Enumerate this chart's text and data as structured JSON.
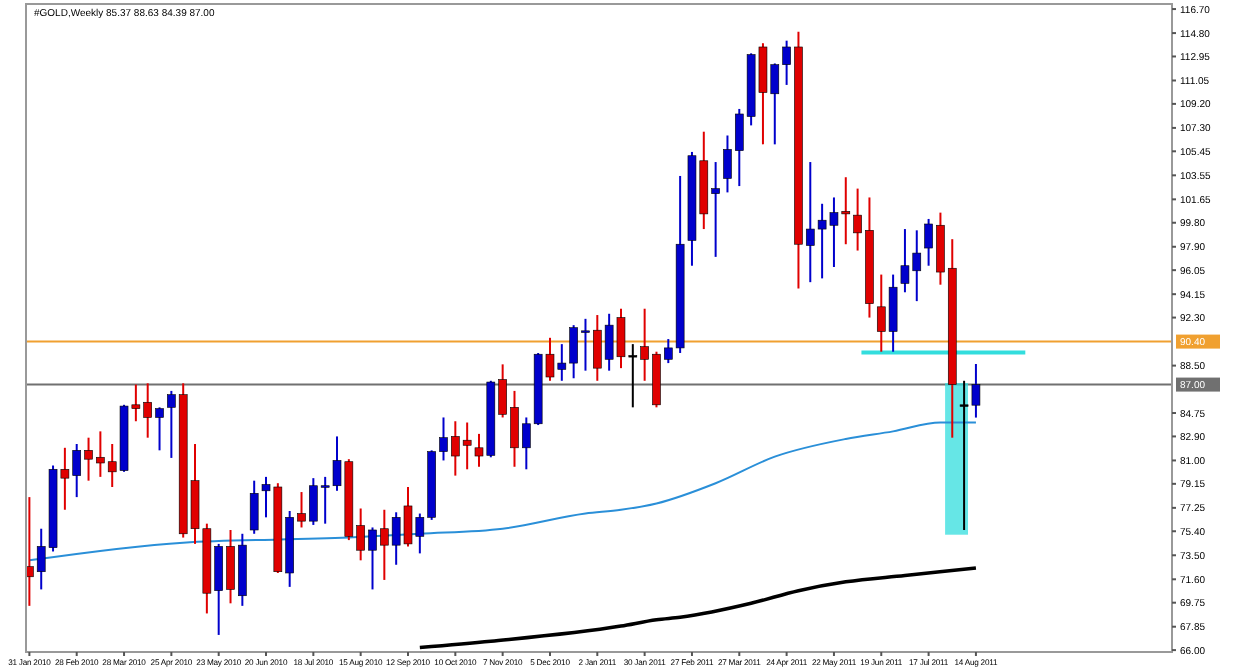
{
  "chart_data": {
    "type": "candlestick",
    "title": "#GOLD,Weekly 85.37 88.63 84.39 87.00",
    "x": [
      "2010-01-31",
      "2010-02-07",
      "2010-02-14",
      "2010-02-21",
      "2010-02-28",
      "2010-03-07",
      "2010-03-14",
      "2010-03-21",
      "2010-03-28",
      "2010-04-04",
      "2010-04-11",
      "2010-04-18",
      "2010-04-25",
      "2010-05-02",
      "2010-05-09",
      "2010-05-16",
      "2010-05-23",
      "2010-05-30",
      "2010-06-06",
      "2010-06-13",
      "2010-06-20",
      "2010-06-27",
      "2010-07-04",
      "2010-07-11",
      "2010-07-18",
      "2010-07-25",
      "2010-08-01",
      "2010-08-08",
      "2010-08-15",
      "2010-08-22",
      "2010-08-29",
      "2010-09-05",
      "2010-09-12",
      "2010-09-19",
      "2010-09-26",
      "2010-10-03",
      "2010-10-10",
      "2010-10-17",
      "2010-10-24",
      "2010-10-31",
      "2010-11-07",
      "2010-11-14",
      "2010-11-21",
      "2010-11-28",
      "2010-12-05",
      "2010-12-12",
      "2010-12-19",
      "2010-12-26",
      "2011-01-02",
      "2011-01-09",
      "2011-01-16",
      "2011-01-23",
      "2011-01-30",
      "2011-02-06",
      "2011-02-13",
      "2011-02-20",
      "2011-02-27",
      "2011-03-06",
      "2011-03-13",
      "2011-03-20",
      "2011-03-27",
      "2011-04-03",
      "2011-04-10",
      "2011-04-17",
      "2011-04-24",
      "2011-05-01",
      "2011-05-08",
      "2011-05-15",
      "2011-05-22",
      "2011-05-29",
      "2011-06-05",
      "2011-06-12",
      "2011-06-19",
      "2011-06-26",
      "2011-07-03",
      "2011-07-10",
      "2011-07-17",
      "2011-07-24",
      "2011-07-31",
      "2011-08-07",
      "2011-08-14"
    ],
    "ohlc": [
      [
        72.6,
        78.1,
        69.5,
        71.8
      ],
      [
        72.2,
        75.6,
        70.8,
        74.2
      ],
      [
        74.1,
        80.6,
        73.8,
        80.3
      ],
      [
        80.3,
        82.0,
        77.1,
        79.6
      ],
      [
        79.8,
        82.3,
        78.1,
        81.8
      ],
      [
        81.8,
        82.8,
        79.4,
        81.1
      ],
      [
        81.25,
        83.3,
        79.7,
        80.8
      ],
      [
        80.9,
        82.3,
        78.9,
        80.1
      ],
      [
        80.2,
        85.4,
        80.1,
        85.3
      ],
      [
        85.4,
        87.0,
        84.1,
        85.1
      ],
      [
        85.6,
        87.1,
        82.8,
        84.4
      ],
      [
        84.4,
        85.2,
        81.8,
        85.1
      ],
      [
        85.2,
        86.5,
        81.2,
        86.2
      ],
      [
        86.2,
        87.1,
        74.9,
        75.2
      ],
      [
        79.4,
        82.3,
        74.4,
        75.6
      ],
      [
        75.6,
        76.0,
        68.9,
        70.5
      ],
      [
        70.7,
        74.4,
        67.2,
        74.2
      ],
      [
        74.2,
        75.5,
        69.7,
        70.8
      ],
      [
        70.3,
        75.2,
        69.5,
        74.3
      ],
      [
        75.5,
        79.4,
        75.2,
        78.4
      ],
      [
        78.6,
        79.7,
        76.5,
        79.1
      ],
      [
        78.9,
        79.2,
        72.1,
        72.2
      ],
      [
        72.1,
        77.0,
        71.0,
        76.5
      ],
      [
        76.8,
        78.5,
        75.7,
        76.2
      ],
      [
        76.2,
        79.6,
        75.9,
        79.0
      ],
      [
        78.95,
        79.7,
        76.0,
        79.0
      ],
      [
        79.0,
        82.9,
        78.6,
        81.0
      ],
      [
        80.9,
        81.1,
        74.7,
        75.0
      ],
      [
        75.85,
        77.2,
        73.1,
        73.9
      ],
      [
        73.9,
        75.7,
        70.8,
        75.5
      ],
      [
        75.6,
        77.1,
        71.55,
        74.3
      ],
      [
        74.3,
        76.9,
        72.75,
        76.5
      ],
      [
        77.4,
        78.9,
        74.2,
        74.4
      ],
      [
        75.0,
        76.8,
        73.65,
        76.5
      ],
      [
        76.5,
        81.8,
        76.3,
        81.7
      ],
      [
        81.7,
        84.4,
        81.0,
        82.8
      ],
      [
        82.9,
        84.1,
        79.8,
        81.35
      ],
      [
        82.6,
        84.0,
        80.3,
        82.2
      ],
      [
        82.0,
        83.1,
        80.5,
        81.35
      ],
      [
        81.4,
        87.3,
        81.25,
        87.2
      ],
      [
        87.4,
        88.6,
        84.4,
        84.65
      ],
      [
        85.2,
        86.5,
        80.5,
        82.0
      ],
      [
        82.0,
        84.4,
        80.3,
        83.9
      ],
      [
        83.9,
        89.5,
        83.8,
        89.4
      ],
      [
        89.4,
        90.7,
        87.3,
        87.6
      ],
      [
        88.2,
        90.2,
        87.3,
        88.7
      ],
      [
        88.7,
        91.7,
        87.5,
        91.5
      ],
      [
        91.2,
        92.2,
        88.1,
        91.25
      ],
      [
        91.3,
        92.5,
        87.3,
        88.3
      ],
      [
        89.0,
        92.6,
        88.1,
        91.7
      ],
      [
        92.3,
        93.0,
        88.3,
        89.2
      ],
      [
        89.3,
        90.2,
        85.2,
        89.3
      ],
      [
        90.0,
        93.0,
        87.3,
        89.0
      ],
      [
        89.4,
        89.6,
        85.2,
        85.4
      ],
      [
        89.0,
        90.6,
        88.7,
        89.9
      ],
      [
        89.9,
        103.5,
        89.5,
        98.1
      ],
      [
        98.4,
        105.4,
        96.4,
        105.1
      ],
      [
        104.7,
        107.0,
        99.3,
        100.5
      ],
      [
        102.1,
        104.6,
        97.1,
        102.5
      ],
      [
        103.3,
        106.7,
        102.2,
        105.6
      ],
      [
        105.5,
        108.8,
        102.7,
        108.4
      ],
      [
        108.2,
        113.2,
        107.5,
        113.1
      ],
      [
        113.7,
        114.0,
        106.0,
        110.1
      ],
      [
        110.0,
        112.4,
        106.0,
        112.3
      ],
      [
        112.3,
        114.2,
        110.7,
        113.7
      ],
      [
        113.7,
        114.9,
        94.6,
        98.1
      ],
      [
        98.0,
        104.6,
        95.1,
        99.3
      ],
      [
        99.3,
        101.3,
        95.4,
        100.0
      ],
      [
        99.6,
        101.8,
        96.3,
        100.6
      ],
      [
        100.7,
        103.4,
        98.1,
        100.5
      ],
      [
        100.4,
        102.5,
        97.6,
        99.0
      ],
      [
        99.2,
        101.8,
        92.3,
        93.4
      ],
      [
        93.15,
        95.7,
        89.6,
        91.2
      ],
      [
        91.2,
        95.7,
        89.6,
        94.7
      ],
      [
        95.0,
        99.3,
        94.3,
        96.4
      ],
      [
        96.0,
        99.2,
        93.6,
        97.4
      ],
      [
        97.8,
        100.1,
        96.4,
        99.7
      ],
      [
        99.6,
        100.6,
        94.9,
        95.9
      ],
      [
        96.2,
        98.5,
        82.8,
        87.0
      ],
      [
        85.4,
        87.3,
        75.5,
        85.4
      ],
      [
        85.37,
        88.63,
        84.39,
        87.0
      ]
    ],
    "colors": [
      "#e00000",
      "#0000cc",
      "#0000cc",
      "#e00000",
      "#0000cc",
      "#e00000",
      "#e00000",
      "#e00000",
      "#0000cc",
      "#e00000",
      "#e00000",
      "#0000cc",
      "#0000cc",
      "#e00000",
      "#e00000",
      "#e00000",
      "#0000cc",
      "#e00000",
      "#0000cc",
      "#0000cc",
      "#0000cc",
      "#e00000",
      "#0000cc",
      "#e00000",
      "#0000cc",
      "#0000cc",
      "#0000cc",
      "#e00000",
      "#e00000",
      "#0000cc",
      "#e00000",
      "#0000cc",
      "#e00000",
      "#0000cc",
      "#0000cc",
      "#0000cc",
      "#e00000",
      "#e00000",
      "#e00000",
      "#0000cc",
      "#e00000",
      "#e00000",
      "#0000cc",
      "#0000cc",
      "#e00000",
      "#0000cc",
      "#0000cc",
      "#0000cc",
      "#e00000",
      "#0000cc",
      "#e00000",
      "#000000",
      "#e00000",
      "#e00000",
      "#0000cc",
      "#0000cc",
      "#0000cc",
      "#e00000",
      "#0000cc",
      "#0000cc",
      "#0000cc",
      "#0000cc",
      "#e00000",
      "#0000cc",
      "#0000cc",
      "#e00000",
      "#0000cc",
      "#0000cc",
      "#0000cc",
      "#e00000",
      "#e00000",
      "#e00000",
      "#e00000",
      "#0000cc",
      "#0000cc",
      "#0000cc",
      "#0000cc",
      "#e00000",
      "#e00000",
      "#000000",
      "#0000cc"
    ],
    "series": [
      {
        "type": "line",
        "color": "#2a8fd8",
        "x": [
          "2010-01-31",
          "2010-05-02",
          "2010-08-08",
          "2010-09-19",
          "2010-11-07",
          "2010-12-26",
          "2011-01-16",
          "2011-02-06",
          "2011-03-13",
          "2011-04-17",
          "2011-05-29",
          "2011-06-26",
          "2011-07-24",
          "2011-08-14"
        ],
        "values": [
          73.1,
          74.5,
          74.9,
          75.2,
          75.6,
          76.8,
          77.1,
          77.6,
          79.2,
          81.3,
          82.7,
          83.3,
          84.0,
          84.0
        ]
      },
      {
        "type": "line",
        "color": "#000000",
        "x": [
          "2010-09-19",
          "2010-10-31",
          "2011-01-16",
          "2011-02-06",
          "2011-02-20",
          "2011-04-03",
          "2011-05-01",
          "2011-05-29",
          "2011-07-03",
          "2011-08-14"
        ],
        "values": [
          66.2,
          66.7,
          67.9,
          68.4,
          68.6,
          69.7,
          70.7,
          71.4,
          71.9,
          72.5
        ]
      }
    ],
    "ref_lines": [
      {
        "axis": "y",
        "value": 90.4,
        "label": "90.40",
        "color": "#f0a030"
      },
      {
        "axis": "y",
        "value": 87.0,
        "label": "87.00",
        "color": "#707070"
      }
    ],
    "xlim": [
      "2010-01-29",
      "2011-12-08"
    ],
    "xticks": [
      {
        "value": "2010-01-31",
        "label": "31 Jan 2010"
      },
      {
        "value": "2010-02-28",
        "label": "28 Feb 2010"
      },
      {
        "value": "2010-03-28",
        "label": "28 Mar 2010"
      },
      {
        "value": "2010-04-25",
        "label": "25 Apr 2010"
      },
      {
        "value": "2010-05-23",
        "label": "23 May 2010"
      },
      {
        "value": "2010-06-20",
        "label": "20 Jun 2010"
      },
      {
        "value": "2010-07-18",
        "label": "18 Jul 2010"
      },
      {
        "value": "2010-08-15",
        "label": "15 Aug 2010"
      },
      {
        "value": "2010-09-12",
        "label": "12 Sep 2010"
      },
      {
        "value": "2010-10-10",
        "label": "10 Oct 2010"
      },
      {
        "value": "2010-11-07",
        "label": "7 Nov 2010"
      },
      {
        "value": "2010-12-05",
        "label": "5 Dec 2010"
      },
      {
        "value": "2011-01-02",
        "label": "2 Jan 2011"
      },
      {
        "value": "2011-01-30",
        "label": "30 Jan 2011"
      },
      {
        "value": "2011-02-27",
        "label": "27 Feb 2011"
      },
      {
        "value": "2011-03-27",
        "label": "27 Mar 2011"
      },
      {
        "value": "2011-04-24",
        "label": "24 Apr 2011"
      },
      {
        "value": "2011-05-22",
        "label": "22 May 2011"
      },
      {
        "value": "2011-06-19",
        "label": "19 Jun 2011"
      },
      {
        "value": "2011-07-17",
        "label": "17 Jul 2011"
      },
      {
        "value": "2011-08-14",
        "label": "14 Aug 2011"
      }
    ],
    "ylim": [
      65.85,
      117.1
    ],
    "yticks": [
      {
        "value": 116.7,
        "label": "116.70"
      },
      {
        "value": 114.8,
        "label": "114.80"
      },
      {
        "value": 112.95,
        "label": "112.95"
      },
      {
        "value": 111.05,
        "label": "111.05"
      },
      {
        "value": 109.2,
        "label": "109.20"
      },
      {
        "value": 107.3,
        "label": "107.30"
      },
      {
        "value": 105.45,
        "label": "105.45"
      },
      {
        "value": 103.55,
        "label": "103.55"
      },
      {
        "value": 101.65,
        "label": "101.65"
      },
      {
        "value": 99.8,
        "label": "99.80"
      },
      {
        "value": 97.9,
        "label": "97.90"
      },
      {
        "value": 96.05,
        "label": "96.05"
      },
      {
        "value": 94.15,
        "label": "94.15"
      },
      {
        "value": 92.3,
        "label": "92.30"
      },
      {
        "value": 88.5,
        "label": "88.50"
      },
      {
        "value": 84.75,
        "label": "84.75"
      },
      {
        "value": 82.9,
        "label": "82.90"
      },
      {
        "value": 81.0,
        "label": "81.00"
      },
      {
        "value": 79.15,
        "label": "79.15"
      },
      {
        "value": 77.25,
        "label": "77.25"
      },
      {
        "value": 75.4,
        "label": "75.40"
      },
      {
        "value": 73.5,
        "label": "73.50"
      },
      {
        "value": 71.6,
        "label": "71.60"
      },
      {
        "value": 69.75,
        "label": "69.75"
      },
      {
        "value": 67.85,
        "label": "67.85"
      },
      {
        "value": 66.0,
        "label": "66.00"
      }
    ]
  }
}
